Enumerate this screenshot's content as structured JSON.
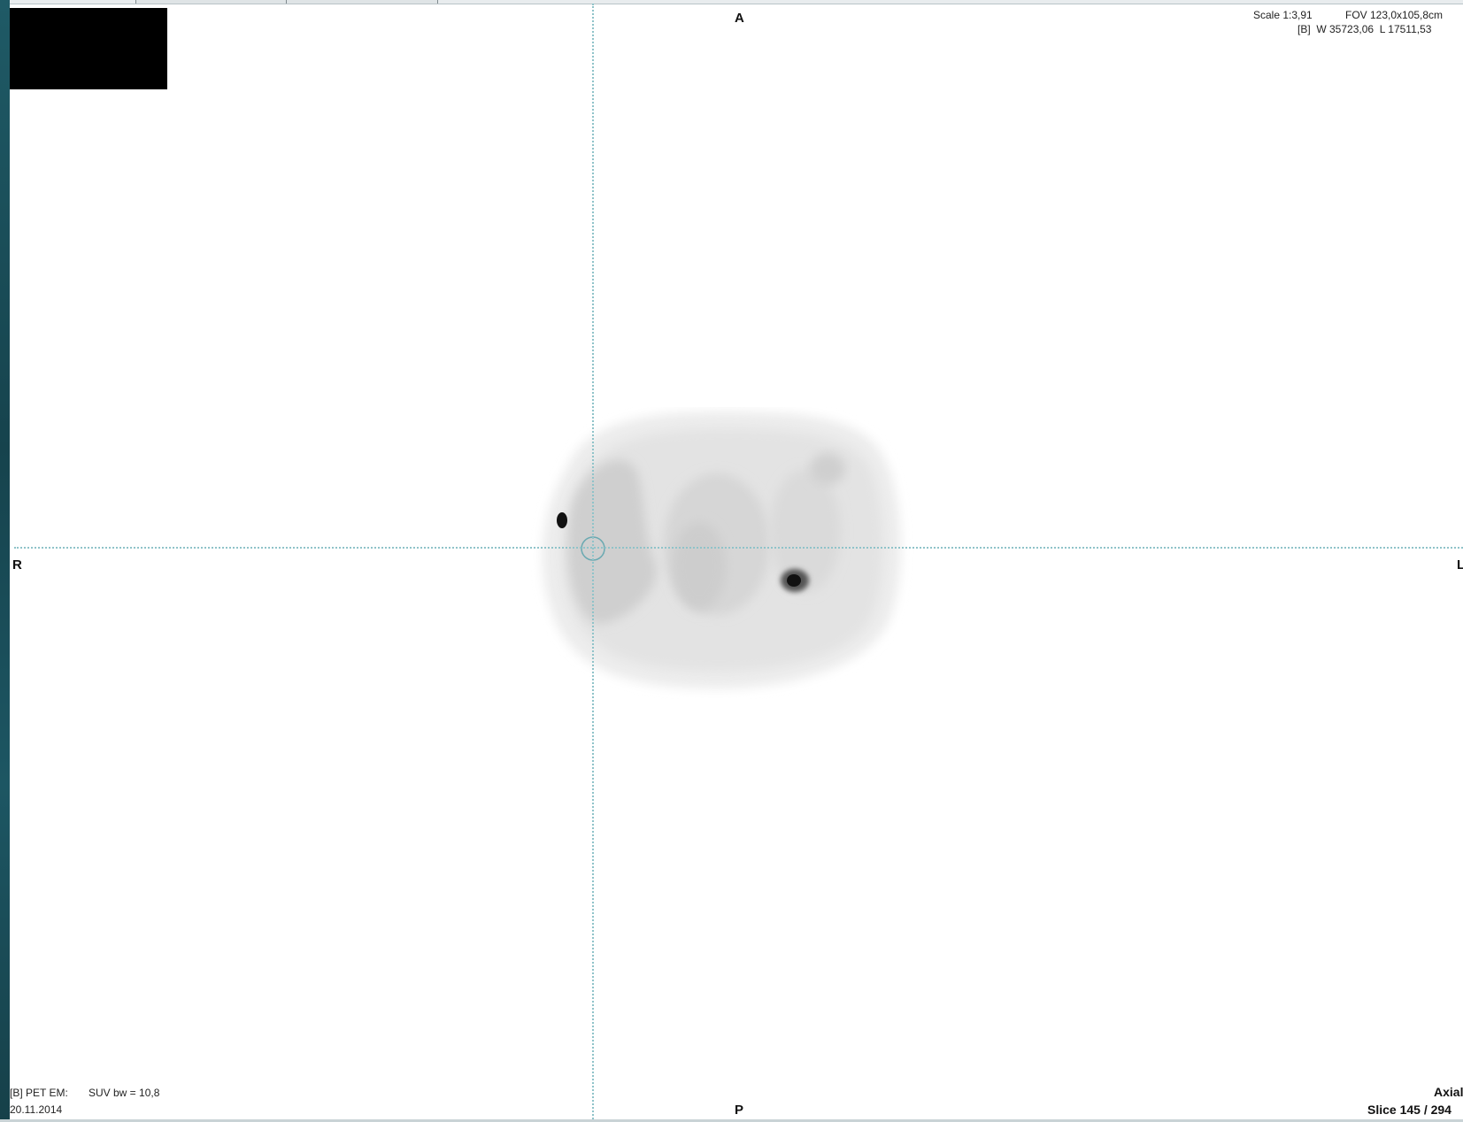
{
  "orientation": {
    "anterior": "A",
    "posterior": "P",
    "right": "R",
    "left": "L"
  },
  "top_right_overlay": {
    "scale": "Scale 1:3,91",
    "fov": "FOV 123,0x105,8cm",
    "window_level": "[B]  W 35723,06  L 17511,53"
  },
  "bottom_left_overlay": {
    "series": "[B] PET EM:",
    "suv": "SUV bw = 10,8",
    "date": "20.11.2014"
  },
  "bottom_right_overlay": {
    "plane": "Axial",
    "slice": "Slice 145 / 294"
  },
  "colors": {
    "background": "#ffffff",
    "crosshair": "#8fc3c9",
    "rail": "#1d5663"
  },
  "icons": {
    "roi_marker": "circle-roi-icon"
  }
}
